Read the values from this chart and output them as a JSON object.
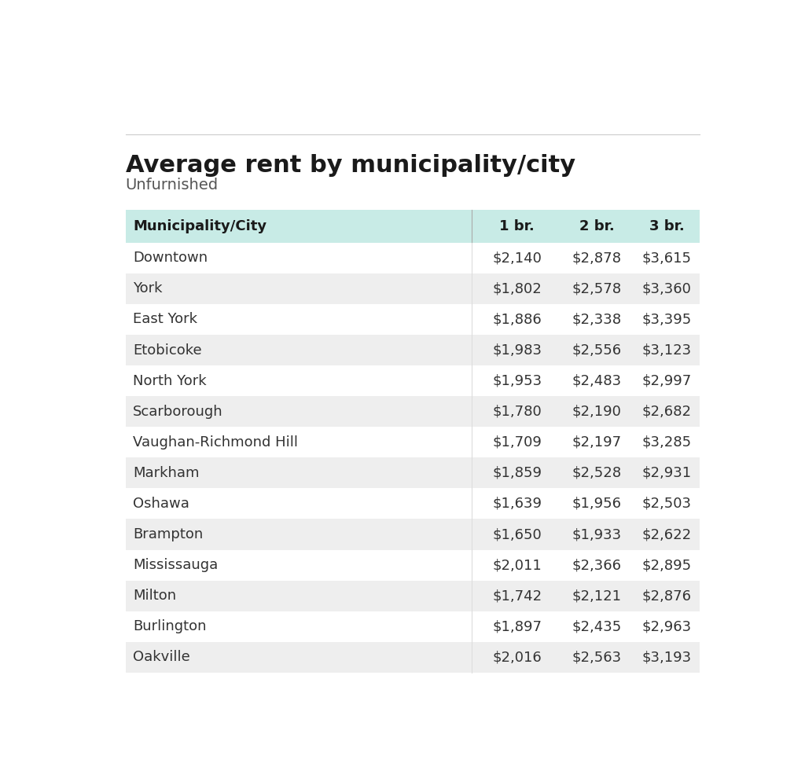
{
  "title": "Average rent by municipality/city",
  "subtitle": "Unfurnished",
  "columns": [
    "Municipality/City",
    "1 br.",
    "2 br.",
    "3 br."
  ],
  "rows": [
    [
      "Downtown",
      "$2,140",
      "$2,878",
      "$3,615"
    ],
    [
      "York",
      "$1,802",
      "$2,578",
      "$3,360"
    ],
    [
      "East York",
      "$1,886",
      "$2,338",
      "$3,395"
    ],
    [
      "Etobicoke",
      "$1,983",
      "$2,556",
      "$3,123"
    ],
    [
      "North York",
      "$1,953",
      "$2,483",
      "$2,997"
    ],
    [
      "Scarborough",
      "$1,780",
      "$2,190",
      "$2,682"
    ],
    [
      "Vaughan-Richmond Hill",
      "$1,709",
      "$2,197",
      "$3,285"
    ],
    [
      "Markham",
      "$1,859",
      "$2,528",
      "$2,931"
    ],
    [
      "Oshawa",
      "$1,639",
      "$1,956",
      "$2,503"
    ],
    [
      "Brampton",
      "$1,650",
      "$1,933",
      "$2,622"
    ],
    [
      "Mississauga",
      "$2,011",
      "$2,366",
      "$2,895"
    ],
    [
      "Milton",
      "$1,742",
      "$2,121",
      "$2,876"
    ],
    [
      "Burlington",
      "$1,897",
      "$2,435",
      "$2,963"
    ],
    [
      "Oakville",
      "$2,016",
      "$2,563",
      "$3,193"
    ]
  ],
  "header_bg": "#c8ebe6",
  "odd_row_bg": "#eeeeee",
  "even_row_bg": "#ffffff",
  "header_text_color": "#1a1a1a",
  "row_text_color": "#333333",
  "title_color": "#1a1a1a",
  "subtitle_color": "#555555",
  "background_color": "#ffffff",
  "top_line_color": "#cccccc",
  "sep_line_color": "#aaaaaa"
}
